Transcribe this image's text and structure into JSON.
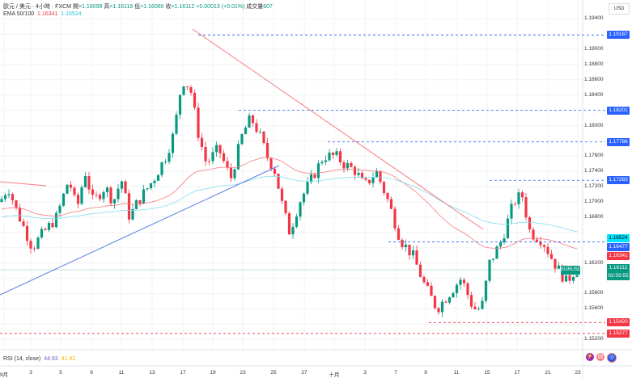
{
  "header": {
    "symbol": "歐元 / 美元 · 4小時 · FXCM",
    "open_label": "開",
    "open": "1.16099",
    "high_label": "高",
    "high": "1.16119",
    "low_label": "低",
    "low": "1.16060",
    "close_label": "收",
    "close": "1.16112",
    "change": "+0.00013 (+0.01%)",
    "volume_label": "成交量",
    "volume": "607"
  },
  "ema": {
    "label": "EMA 50/100",
    "ema50": "1.16341",
    "ema100": "1.16524"
  },
  "rsi": {
    "label": "RSI (14, close)",
    "value": "44.93",
    "ma": "41.42"
  },
  "axis": {
    "currency": "USD",
    "labels": [
      "1.19400",
      "1.19000",
      "1.18800",
      "1.18600",
      "1.18400",
      "1.18000",
      "1.17600",
      "1.17400",
      "1.17200",
      "1.17000",
      "1.16800",
      "1.16200",
      "1.15800",
      "1.15600",
      "1.15200"
    ]
  },
  "tags": [
    {
      "price": "1.19187",
      "color": "#2962ff"
    },
    {
      "price": "1.18201",
      "color": "#2962ff"
    },
    {
      "price": "1.17786",
      "color": "#2962ff"
    },
    {
      "price": "1.17283",
      "color": "#2962ff"
    },
    {
      "price": "1.16524",
      "color": "#00e5ff"
    },
    {
      "price": "1.16477",
      "color": "#2962ff"
    },
    {
      "price": "1.16341",
      "color": "#f23645"
    },
    {
      "price": "1.15420",
      "color": "#f23645"
    },
    {
      "price": "1.15277",
      "color": "#f23645"
    }
  ],
  "current": {
    "symbol": "EURUSD",
    "price": "1.16112",
    "countdown": "02:59:55"
  },
  "dates": [
    "9月",
    "3",
    "5",
    "9",
    "11",
    "13",
    "17",
    "19",
    "23",
    "25",
    "27",
    "十月",
    "3",
    "7",
    "9",
    "11",
    "15",
    "17",
    "21",
    "23"
  ],
  "colors": {
    "up": "#089981",
    "down": "#f23645"
  },
  "price_path": [
    [
      0,
      1.17
    ],
    [
      10,
      1.172
    ],
    [
      20,
      1.169
    ],
    [
      40,
      1.164
    ],
    [
      50,
      1.1655
    ],
    [
      70,
      1.168
    ],
    [
      85,
      1.173
    ],
    [
      95,
      1.169
    ],
    [
      105,
      1.174
    ],
    [
      115,
      1.17
    ],
    [
      130,
      1.172
    ],
    [
      140,
      1.17
    ],
    [
      150,
      1.173
    ],
    [
      160,
      1.168
    ],
    [
      170,
      1.17
    ],
    [
      190,
      1.173
    ],
    [
      205,
      1.176
    ],
    [
      215,
      1.179
    ],
    [
      225,
      1.186
    ],
    [
      235,
      1.185
    ],
    [
      245,
      1.179
    ],
    [
      255,
      1.175
    ],
    [
      270,
      1.177
    ],
    [
      285,
      1.173
    ],
    [
      300,
      1.179
    ],
    [
      310,
      1.181
    ],
    [
      320,
      1.179
    ],
    [
      330,
      1.176
    ],
    [
      340,
      1.174
    ],
    [
      350,
      1.169
    ],
    [
      358,
      1.166
    ],
    [
      370,
      1.17
    ],
    [
      385,
      1.173
    ],
    [
      400,
      1.176
    ],
    [
      415,
      1.176
    ],
    [
      425,
      1.175
    ],
    [
      440,
      1.174
    ],
    [
      450,
      1.172
    ],
    [
      465,
      1.174
    ],
    [
      480,
      1.17
    ],
    [
      495,
      1.165
    ],
    [
      510,
      1.163
    ],
    [
      525,
      1.159
    ],
    [
      540,
      1.156
    ],
    [
      555,
      1.158
    ],
    [
      570,
      1.16
    ],
    [
      585,
      1.156
    ],
    [
      595,
      1.156
    ],
    [
      605,
      1.162
    ],
    [
      620,
      1.165
    ],
    [
      635,
      1.17
    ],
    [
      645,
      1.171
    ],
    [
      655,
      1.166
    ],
    [
      670,
      1.165
    ],
    [
      685,
      1.162
    ],
    [
      700,
      1.1595
    ],
    [
      710,
      1.161
    ],
    [
      715,
      1.1611
    ]
  ]
}
